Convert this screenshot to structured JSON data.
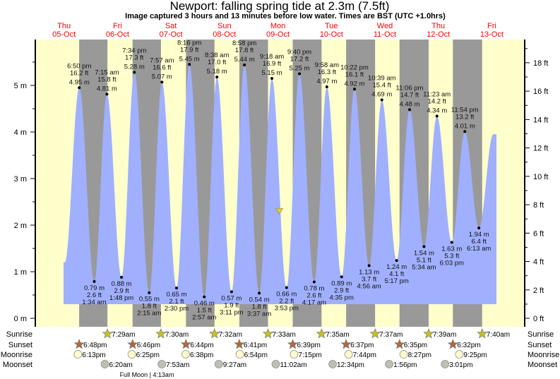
{
  "chart_data": {
    "type": "area",
    "title": "Newport: falling  spring tide at 2.3m (7.5ft)",
    "subtitle": "Image captured 3 hours and 13 minutes before low water. Times are BST (UTC +1.0hrs)",
    "days": [
      {
        "dow": "Thu",
        "date": "05-Oct"
      },
      {
        "dow": "Fri",
        "date": "06-Oct"
      },
      {
        "dow": "Sat",
        "date": "07-Oct"
      },
      {
        "dow": "Sun",
        "date": "08-Oct"
      },
      {
        "dow": "Mon",
        "date": "09-Oct"
      },
      {
        "dow": "Tue",
        "date": "10-Oct"
      },
      {
        "dow": "Wed",
        "date": "11-Oct"
      },
      {
        "dow": "Thu",
        "date": "12-Oct"
      },
      {
        "dow": "Fri",
        "date": "13-Oct"
      }
    ],
    "y_left": {
      "unit": "m",
      "ticks": [
        "0 m",
        "1 m",
        "2 m",
        "3 m",
        "4 m",
        "5 m"
      ],
      "range": [
        -0.18,
        5.95
      ]
    },
    "y_right": {
      "unit": "ft",
      "ticks": [
        "0 ft",
        "2 ft",
        "4 ft",
        "6 ft",
        "8 ft",
        "10 ft",
        "12 ft",
        "14 ft",
        "16 ft",
        "18 ft"
      ]
    },
    "current": {
      "date": "09-Oct",
      "time": "12:40 pm",
      "m": 2.3,
      "ft": 7.5
    },
    "curve_start": {
      "date": "05-Oct",
      "time": "12:20 pm",
      "m": 1.2
    },
    "curve_end": {
      "date": "13-Oct",
      "time": "12:40 pm",
      "m": 3.95
    },
    "extremes": [
      {
        "type": "high",
        "date": "05-Oct",
        "time": "6:50 pm",
        "ft": "16.2 ft",
        "m": 4.95
      },
      {
        "type": "low",
        "date": "06-Oct",
        "time": "1:34 am",
        "ft": "2.6 ft",
        "m": 0.79
      },
      {
        "type": "high",
        "date": "06-Oct",
        "time": "7:15 am",
        "ft": "15.8 ft",
        "m": 4.81
      },
      {
        "type": "low",
        "date": "06-Oct",
        "time": "1:48 pm",
        "ft": "2.9 ft",
        "m": 0.88
      },
      {
        "type": "high",
        "date": "06-Oct",
        "time": "7:34 pm",
        "ft": "17.3 ft",
        "m": 5.28
      },
      {
        "type": "low",
        "date": "07-Oct",
        "time": "2:15 am",
        "ft": "1.8 ft",
        "m": 0.55
      },
      {
        "type": "high",
        "date": "07-Oct",
        "time": "7:57 am",
        "ft": "16.6 ft",
        "m": 5.07
      },
      {
        "type": "low",
        "date": "07-Oct",
        "time": "2:30 pm",
        "ft": "2.1 ft",
        "m": 0.65
      },
      {
        "type": "high",
        "date": "07-Oct",
        "time": "8:16 pm",
        "ft": "17.9 ft",
        "m": 5.45
      },
      {
        "type": "low",
        "date": "08-Oct",
        "time": "2:57 am",
        "ft": "1.5 ft",
        "m": 0.46
      },
      {
        "type": "high",
        "date": "08-Oct",
        "time": "8:38 am",
        "ft": "17.0 ft",
        "m": 5.18
      },
      {
        "type": "low",
        "date": "08-Oct",
        "time": "3:11 pm",
        "ft": "1.9 ft",
        "m": 0.57
      },
      {
        "type": "high",
        "date": "08-Oct",
        "time": "8:58 pm",
        "ft": "17.8 ft",
        "m": 5.44
      },
      {
        "type": "low",
        "date": "09-Oct",
        "time": "3:37 am",
        "ft": "1.8 ft",
        "m": 0.54
      },
      {
        "type": "high",
        "date": "09-Oct",
        "time": "9:18 am",
        "ft": "16.9 ft",
        "m": 5.15
      },
      {
        "type": "low",
        "date": "09-Oct",
        "time": "3:53 pm",
        "ft": "2.2 ft",
        "m": 0.66
      },
      {
        "type": "high",
        "date": "09-Oct",
        "time": "9:40 pm",
        "ft": "17.2 ft",
        "m": 5.25
      },
      {
        "type": "low",
        "date": "10-Oct",
        "time": "4:17 am",
        "ft": "2.6 ft",
        "m": 0.78
      },
      {
        "type": "high",
        "date": "10-Oct",
        "time": "9:58 am",
        "ft": "16.3 ft",
        "m": 4.97
      },
      {
        "type": "low",
        "date": "10-Oct",
        "time": "4:35 pm",
        "ft": "2.9 ft",
        "m": 0.89
      },
      {
        "type": "high",
        "date": "10-Oct",
        "time": "10:22 pm",
        "ft": "16.1 ft",
        "m": 4.92
      },
      {
        "type": "low",
        "date": "11-Oct",
        "time": "4:56 am",
        "ft": "3.7 ft",
        "m": 1.13
      },
      {
        "type": "high",
        "date": "11-Oct",
        "time": "10:39 am",
        "ft": "15.4 ft",
        "m": 4.69
      },
      {
        "type": "low",
        "date": "11-Oct",
        "time": "5:17 pm",
        "ft": "4.1 ft",
        "m": 1.24
      },
      {
        "type": "high",
        "date": "11-Oct",
        "time": "11:06 pm",
        "ft": "14.7 ft",
        "m": 4.48
      },
      {
        "type": "low",
        "date": "12-Oct",
        "time": "5:34 am",
        "ft": "5.1 ft",
        "m": 1.54
      },
      {
        "type": "high",
        "date": "12-Oct",
        "time": "11:23 am",
        "ft": "14.2 ft",
        "m": 4.34
      },
      {
        "type": "low",
        "date": "12-Oct",
        "time": "6:03 pm",
        "ft": "5.3 ft",
        "m": 1.63
      },
      {
        "type": "high",
        "date": "12-Oct",
        "time": "11:54 pm",
        "ft": "13.2 ft",
        "m": 4.01
      },
      {
        "type": "low",
        "date": "13-Oct",
        "time": "6:13 am",
        "ft": "6.4 ft",
        "m": 1.94
      }
    ],
    "rows": [
      {
        "label": "Sunrise",
        "icon": "sunrise-star-icon",
        "color": "#c8c020",
        "events": [
          {
            "date": "06-Oct",
            "time": "7:29am"
          },
          {
            "date": "07-Oct",
            "time": "7:30am"
          },
          {
            "date": "08-Oct",
            "time": "7:32am"
          },
          {
            "date": "09-Oct",
            "time": "7:33am"
          },
          {
            "date": "10-Oct",
            "time": "7:35am"
          },
          {
            "date": "11-Oct",
            "time": "7:37am"
          },
          {
            "date": "12-Oct",
            "time": "7:39am"
          },
          {
            "date": "13-Oct",
            "time": "7:40am"
          }
        ]
      },
      {
        "label": "Sunset",
        "icon": "sunset-star-icon",
        "color": "#b06840",
        "events": [
          {
            "date": "05-Oct",
            "time": "6:48pm"
          },
          {
            "date": "06-Oct",
            "time": "6:46pm"
          },
          {
            "date": "07-Oct",
            "time": "6:44pm"
          },
          {
            "date": "08-Oct",
            "time": "6:41pm"
          },
          {
            "date": "09-Oct",
            "time": "6:39pm"
          },
          {
            "date": "10-Oct",
            "time": "6:37pm"
          },
          {
            "date": "11-Oct",
            "time": "6:35pm"
          },
          {
            "date": "12-Oct",
            "time": "6:32pm"
          }
        ]
      },
      {
        "label": "Moonrise",
        "icon": "moonrise-icon",
        "color": "#fffbcc",
        "events": [
          {
            "date": "05-Oct",
            "time": "6:13pm"
          },
          {
            "date": "06-Oct",
            "time": "6:25pm"
          },
          {
            "date": "07-Oct",
            "time": "6:38pm"
          },
          {
            "date": "08-Oct",
            "time": "6:54pm"
          },
          {
            "date": "09-Oct",
            "time": "7:15pm"
          },
          {
            "date": "10-Oct",
            "time": "7:44pm"
          },
          {
            "date": "11-Oct",
            "time": "8:27pm"
          },
          {
            "date": "12-Oct",
            "time": "9:25pm"
          }
        ]
      },
      {
        "label": "Moonset",
        "icon": "moonset-icon",
        "color": "#c0c0b0",
        "events": [
          {
            "date": "06-Oct",
            "time": "6:20am"
          },
          {
            "date": "07-Oct",
            "time": "7:53am"
          },
          {
            "date": "08-Oct",
            "time": "9:27am"
          },
          {
            "date": "09-Oct",
            "time": "11:02am"
          },
          {
            "date": "10-Oct",
            "time": "12:34pm"
          },
          {
            "date": "11-Oct",
            "time": "1:56pm"
          },
          {
            "date": "12-Oct",
            "time": "3:01pm"
          }
        ]
      }
    ],
    "moon_phase": {
      "text": "Full Moon | 4:13am"
    },
    "colors": {
      "day": "#ffffcc",
      "night": "#999999",
      "water": "#a0b0ff",
      "day_label": "#ff0000",
      "current_marker": "#e8d020"
    }
  }
}
